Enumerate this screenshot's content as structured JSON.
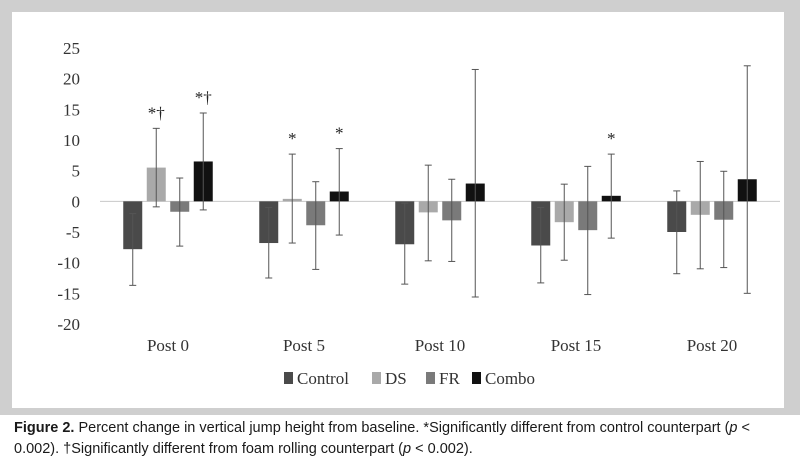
{
  "chart_data": {
    "type": "bar",
    "categories": [
      "Post 0",
      "Post 5",
      "Post 10",
      "Post 15",
      "Post 20"
    ],
    "ylim": [
      -20,
      25
    ],
    "yticks": [
      -20,
      -15,
      -10,
      -5,
      0,
      5,
      10,
      15,
      20,
      25
    ],
    "ytick_labels": [
      "-20",
      "-15",
      "-10",
      "-5",
      "0",
      "5",
      "10",
      "15",
      "20",
      "25"
    ],
    "xlabel": "",
    "ylabel": "",
    "legend_position": "bottom",
    "series": [
      {
        "name": "Control",
        "color": "#4a4a4a",
        "values": [
          -7.8,
          -6.8,
          -7.0,
          -7.2,
          -5.0
        ],
        "error_low": [
          -13.7,
          -12.5,
          -13.5,
          -13.3,
          -11.8
        ],
        "error_high": [
          -2.0,
          -1.0,
          -0.3,
          -1.0,
          1.7
        ]
      },
      {
        "name": "DS",
        "color": "#a9a9a9",
        "values": [
          5.5,
          0.4,
          -1.8,
          -3.4,
          -2.2
        ],
        "error_low": [
          -0.9,
          -6.8,
          -9.7,
          -9.6,
          -11.0
        ],
        "error_high": [
          11.9,
          7.7,
          5.9,
          2.8,
          6.5
        ]
      },
      {
        "name": "FR",
        "color": "#7a7a7a",
        "values": [
          -1.7,
          -3.9,
          -3.1,
          -4.7,
          -3.0
        ],
        "error_low": [
          -7.3,
          -11.1,
          -9.8,
          -15.2,
          -10.8
        ],
        "error_high": [
          3.8,
          3.2,
          3.6,
          5.7,
          4.9
        ]
      },
      {
        "name": "Combo",
        "color": "#111111",
        "values": [
          6.5,
          1.6,
          2.9,
          0.9,
          3.6
        ],
        "error_low": [
          -1.4,
          -5.5,
          -15.6,
          -6.0,
          -15.0
        ],
        "error_high": [
          14.4,
          8.6,
          21.5,
          7.7,
          22.1
        ]
      }
    ],
    "annotations": [
      {
        "category": "Post 0",
        "series": "DS",
        "text": "*†"
      },
      {
        "category": "Post 0",
        "series": "Combo",
        "text": "*†"
      },
      {
        "category": "Post 5",
        "series": "DS",
        "text": "*"
      },
      {
        "category": "Post 5",
        "series": "Combo",
        "text": "*"
      },
      {
        "category": "Post 15",
        "series": "Combo",
        "text": "*"
      }
    ]
  },
  "caption": {
    "label": "Figure 2.",
    "text_1": " Percent change in vertical jump height from baseline. *Significantly different from control counterpart (",
    "p1": "p",
    "text_2": " < 0.002). †Significantly different from foam rolling counterpart (",
    "p2": "p",
    "text_3": " < 0.002)."
  }
}
